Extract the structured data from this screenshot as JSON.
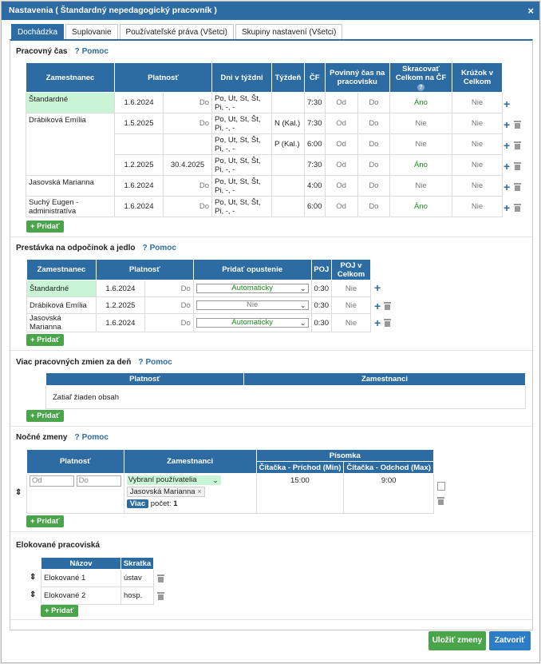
{
  "window": {
    "title": "Nastavenia ( Štandardný nepedagogický pracovník )",
    "close": "×"
  },
  "tabs": [
    {
      "label": "Dochádzka"
    },
    {
      "label": "Suplovanie"
    },
    {
      "label": "Používateľské práva (Všetci)"
    },
    {
      "label": "Skupiny nastavení (Všetci)"
    }
  ],
  "help_label": "Pomoc",
  "add_label": "+ Pridať",
  "work_time": {
    "title": "Pracovný čas",
    "headers": {
      "employee": "Zamestnanec",
      "validity": "Platnosť",
      "days": "Dni v týždni",
      "week": "Týždeň",
      "cf": "ČF",
      "mandatory": "Povinný čas na pracovisku",
      "shorten": "Skracovať Celkom na ČF",
      "ring": "Krúžok v Celkom"
    },
    "rows": [
      {
        "employee": "Štandardné",
        "from": "1.6.2024",
        "to": "Do",
        "days": "Po, Ut, St, Št, Pi, -, -",
        "week": "",
        "cf": "7:30",
        "m_from": "Od",
        "m_to": "Do",
        "shorten": "Áno",
        "ring": "Nie"
      },
      {
        "employee": "Drábiková Emília",
        "from": "1.5.2025",
        "to": "Do",
        "days": "Po, Ut, St, Št, Pi, -, -",
        "week": "N (Kal.)",
        "cf": "7:30",
        "m_from": "Od",
        "m_to": "Do",
        "shorten": "Nie",
        "ring": "Nie"
      },
      {
        "employee": "",
        "from": "",
        "to": "",
        "days": "Po, Ut, St, Št, Pi, -, -",
        "week": "P (Kal.)",
        "cf": "6:00",
        "m_from": "Od",
        "m_to": "Do",
        "shorten": "Nie",
        "ring": "Nie"
      },
      {
        "employee": "",
        "from": "1.2.2025",
        "to": "30.4.2025",
        "days": "Po, Ut, St, Št, Pi, -, -",
        "week": "",
        "cf": "7:30",
        "m_from": "Od",
        "m_to": "Do",
        "shorten": "Áno",
        "ring": "Nie"
      },
      {
        "employee": "Jasovská Marianna",
        "from": "1.6.2024",
        "to": "Do",
        "days": "Po, Ut, St, Št, Pi, -, -",
        "week": "",
        "cf": "4:00",
        "m_from": "Od",
        "m_to": "Do",
        "shorten": "Nie",
        "ring": "Nie"
      },
      {
        "employee": "Suchý Eugen - administratíva",
        "from": "1.6.2024",
        "to": "Do",
        "days": "Po, Ut, St, Št, Pi, -, -",
        "week": "",
        "cf": "6:00",
        "m_from": "Od",
        "m_to": "Do",
        "shorten": "Áno",
        "ring": "Nie"
      }
    ]
  },
  "breaks": {
    "title": "Prestávka na odpočinok a jedlo",
    "headers": {
      "employee": "Zamestnanec",
      "validity": "Platnosť",
      "add_leave": "Pridať opustenie",
      "poj": "POJ",
      "poj_total": "POJ v Celkom"
    },
    "rows": [
      {
        "employee": "Štandardné",
        "from": "1.6.2024",
        "to": "Do",
        "leave": "Automaticky",
        "poj": "0:30",
        "poj_total": "Nie"
      },
      {
        "employee": "Drábiková Emília",
        "from": "1.2.2025",
        "to": "Do",
        "leave": "Nie",
        "poj": "0:30",
        "poj_total": "Nie"
      },
      {
        "employee": "Jasovská Marianna",
        "from": "1.6.2024",
        "to": "Do",
        "leave": "Automaticky",
        "poj": "0:30",
        "poj_total": "Nie"
      }
    ]
  },
  "multi_shifts": {
    "title": "Viac pracovných zmien za deň",
    "headers": {
      "validity": "Platnosť",
      "employees": "Zamestnanci"
    },
    "empty": "Zatiaľ žiaden obsah"
  },
  "night_shifts": {
    "title": "Nočné zmeny",
    "headers": {
      "validity": "Platnosť",
      "employees": "Zamestnanci",
      "written": "Písomka",
      "reader_in": "Čítačka - Príchod (Min)",
      "reader_out": "Čítačka - Odchod (Max)"
    },
    "row": {
      "from_placeholder": "Od",
      "to_placeholder": "Do",
      "select": "Vybraní používatelia",
      "tag": "Jasovská Marianna",
      "tag_x": "×",
      "more": "Viac",
      "count_label": "počet:",
      "count": "1",
      "in": "15:00",
      "out": "9:00"
    }
  },
  "workplaces": {
    "title": "Elokované pracoviská",
    "headers": {
      "name": "Názov",
      "abbr": "Skratka"
    },
    "rows": [
      {
        "name": "Elokované 1",
        "abbr": "ústav"
      },
      {
        "name": "Elokované 2",
        "abbr": "hosp."
      }
    ]
  },
  "footer": {
    "save": "Uložiť zmeny",
    "close": "Zatvoriť"
  },
  "colors": {
    "primary": "#2d6ca2",
    "success": "#4aa44a",
    "highlight": "#c9f4d6"
  }
}
